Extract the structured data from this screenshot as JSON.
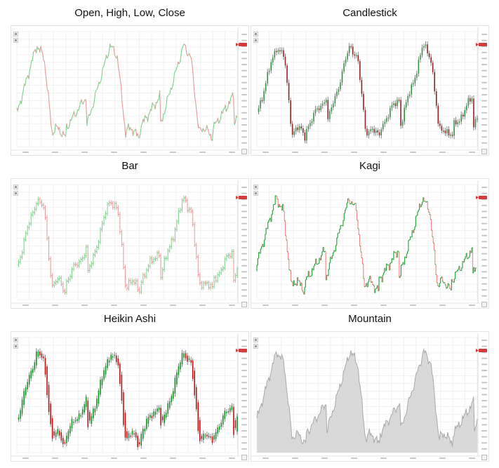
{
  "chart_data": [
    {
      "title": "Open, High, Low, Close",
      "type": "line",
      "style": "ohlc",
      "up_color": "#7fcf8d",
      "down_color": "#e49a9a",
      "price_tag_color": "#d13b3b"
    },
    {
      "title": "Candlestick",
      "type": "bar",
      "style": "candlestick",
      "up_color": "#2e8f41",
      "down_color": "#8e1f1f",
      "price_tag_color": "#d13b3b"
    },
    {
      "title": "Bar",
      "type": "bar",
      "style": "bar",
      "up_color": "#7fcf8d",
      "down_color": "#e49a9a",
      "price_tag_color": "#d13b3b"
    },
    {
      "title": "Kagi",
      "type": "line",
      "style": "kagi",
      "up_color": "#24a43b",
      "down_color": "#f08a8a",
      "price_tag_color": "#d13b3b"
    },
    {
      "title": "Heikin Ashi",
      "type": "bar",
      "style": "heikin-ashi",
      "up_color": "#0c8f1f",
      "down_color": "#b90f0f",
      "price_tag_color": "#d13b3b"
    },
    {
      "title": "Mountain",
      "type": "area",
      "style": "mountain",
      "up_color": "#a9a9a9",
      "down_color": "#e9b3b3",
      "fill_color": "#d9d9d9",
      "price_tag_color": "#d13b3b"
    }
  ]
}
